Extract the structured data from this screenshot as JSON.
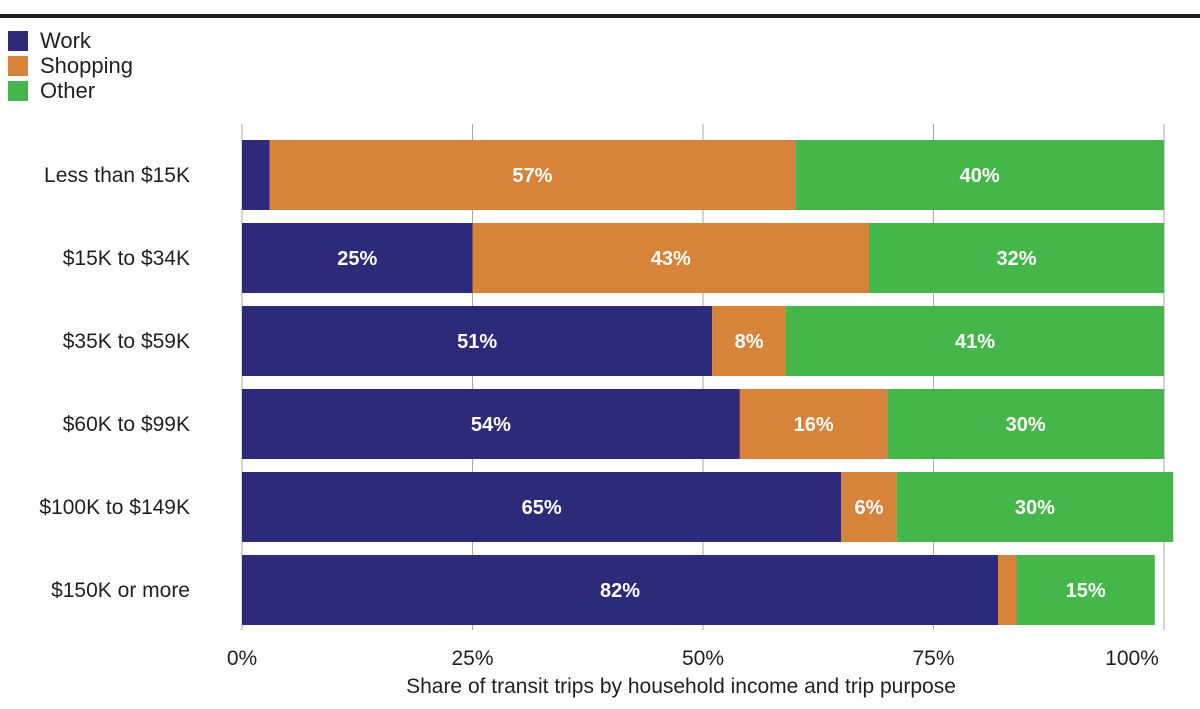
{
  "chart_data": {
    "type": "bar",
    "orientation": "horizontal",
    "stacked": true,
    "categories": [
      "Less than $15K",
      "$15K to $34K",
      "$35K to $59K",
      "$60K to $99K",
      "$100K to $149K",
      "$150K or more"
    ],
    "series": [
      {
        "name": "Work",
        "color": "#2e2a7a",
        "values": [
          3,
          25,
          51,
          54,
          65,
          82
        ],
        "labels": [
          "",
          "25%",
          "51%",
          "54%",
          "65%",
          "82%"
        ]
      },
      {
        "name": "Shopping",
        "color": "#d8833a",
        "values": [
          57,
          43,
          8,
          16,
          6,
          2
        ],
        "labels": [
          "57%",
          "43%",
          "8%",
          "16%",
          "6%",
          ""
        ]
      },
      {
        "name": "Other",
        "color": "#45b649",
        "values": [
          40,
          32,
          41,
          30,
          30,
          15
        ],
        "labels": [
          "40%",
          "32%",
          "41%",
          "30%",
          "30%",
          "15%"
        ]
      }
    ],
    "xlabel": "Share of transit trips by household income and trip purpose",
    "xlim": [
      0,
      100
    ],
    "xticks": [
      0,
      25,
      50,
      75,
      100
    ],
    "xtick_labels": [
      "0%",
      "25%",
      "50%",
      "75%",
      "100%"
    ],
    "grid": "vertical",
    "legend": "top-left"
  }
}
